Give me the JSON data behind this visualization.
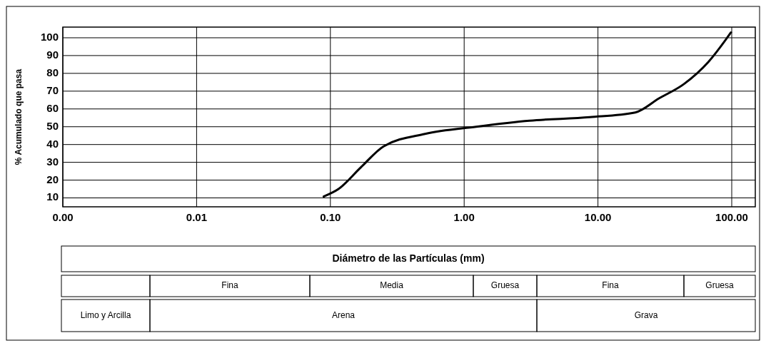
{
  "chart_data": {
    "type": "line",
    "ylabel": "% Acumulado que pasa",
    "x": [
      0.089,
      0.115,
      0.168,
      0.25,
      0.51,
      1.23,
      3.08,
      8.7,
      19,
      28.7,
      43.9,
      67,
      98.7
    ],
    "series": [
      {
        "color": "#000000",
        "values": [
          10.8,
          15,
          27,
          39,
          46,
          50,
          53.4,
          55.4,
          58,
          66,
          74,
          86.5,
          103
        ]
      }
    ],
    "xlim": [
      0.001,
      150
    ],
    "xticks": [
      {
        "value": 0.001,
        "label": "0.00"
      },
      {
        "value": 0.01,
        "label": "0.01"
      },
      {
        "value": 0.1,
        "label": "0.10"
      },
      {
        "value": 1,
        "label": "1.00"
      },
      {
        "value": 10,
        "label": "10.00"
      },
      {
        "value": 100,
        "label": "100.00"
      }
    ],
    "ylim": [
      5,
      106
    ],
    "yticks": [
      10,
      20,
      30,
      40,
      50,
      60,
      70,
      80,
      90,
      100
    ],
    "log": "x",
    "grid": true,
    "marker": "none",
    "line_style": "solid",
    "annotations": [
      "Diámetro de las Partículas (mm)",
      "Fina",
      "Media",
      "Gruesa",
      "Fina",
      "Gruesa",
      "Limo y Arcilla",
      "Arena",
      "Grava"
    ]
  }
}
